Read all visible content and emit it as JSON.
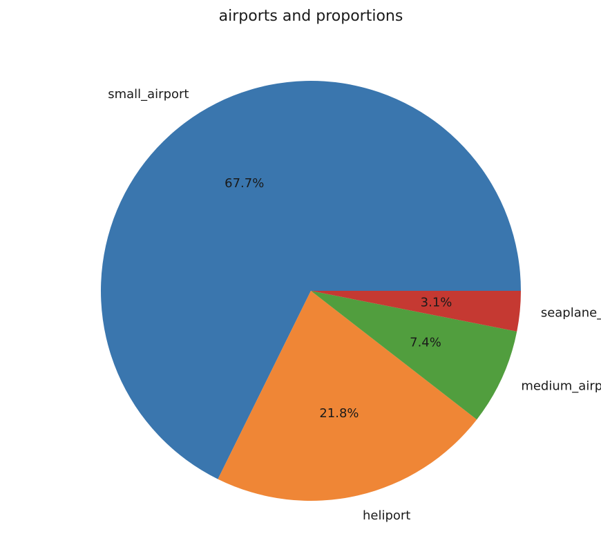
{
  "chart_data": {
    "type": "pie",
    "title": "airports and proportions",
    "categories": [
      "small_airport",
      "heliport",
      "medium_airport",
      "seaplane_base"
    ],
    "values": [
      67.7,
      21.8,
      7.4,
      3.1
    ],
    "value_labels": [
      "67.7%",
      "21.8%",
      "7.4%",
      "3.1%"
    ],
    "colors": [
      "#3a76ae",
      "#ef8636",
      "#519e3e",
      "#c53932"
    ],
    "start_angle_deg": 0,
    "direction": "counterclockwise",
    "legend": "none"
  }
}
